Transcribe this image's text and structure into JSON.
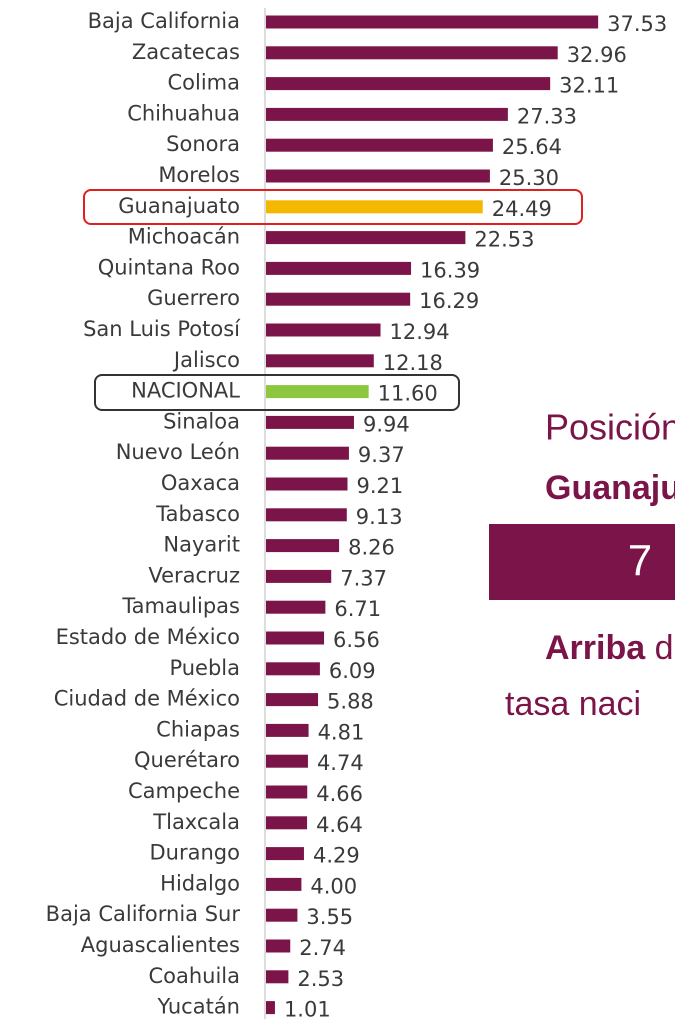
{
  "chart_data": {
    "type": "barh",
    "categories": [
      "Baja California",
      "Zacatecas",
      "Colima",
      "Chihuahua",
      "Sonora",
      "Morelos",
      "Guanajuato",
      "Michoacán",
      "Quintana Roo",
      "Guerrero",
      "San Luis Potosí",
      "Jalisco",
      "NACIONAL",
      "Sinaloa",
      "Nuevo León",
      "Oaxaca",
      "Tabasco",
      "Nayarit",
      "Veracruz",
      "Tamaulipas",
      "Estado de México",
      "Puebla",
      "Ciudad de México",
      "Chiapas",
      "Querétaro",
      "Campeche",
      "Tlaxcala",
      "Durango",
      "Hidalgo",
      "Baja California Sur",
      "Aguascalientes",
      "Coahuila",
      "Yucatán"
    ],
    "values": [
      37.53,
      32.96,
      32.11,
      27.33,
      25.64,
      25.3,
      24.49,
      22.53,
      16.39,
      16.29,
      12.94,
      12.18,
      11.6,
      9.94,
      9.37,
      9.21,
      9.13,
      8.26,
      7.37,
      6.71,
      6.56,
      6.09,
      5.88,
      4.81,
      4.74,
      4.66,
      4.64,
      4.29,
      4.0,
      3.55,
      2.74,
      2.53,
      1.01
    ],
    "value_labels": [
      "37.53",
      "32.96",
      "32.11",
      "27.33",
      "25.64",
      "25.30",
      "24.49",
      "22.53",
      "16.39",
      "16.29",
      "12.94",
      "12.18",
      "11.60",
      "9.94",
      "9.37",
      "9.21",
      "9.13",
      "8.26",
      "7.37",
      "6.71",
      "6.56",
      "6.09",
      "5.88",
      "4.81",
      "4.74",
      "4.66",
      "4.64",
      "4.29",
      "4.00",
      "3.55",
      "2.74",
      "2.53",
      "1.01"
    ],
    "colors": [
      "#7b1448",
      "#7b1448",
      "#7b1448",
      "#7b1448",
      "#7b1448",
      "#7b1448",
      "#f5b800",
      "#7b1448",
      "#7b1448",
      "#7b1448",
      "#7b1448",
      "#7b1448",
      "#8dc63f",
      "#7b1448",
      "#7b1448",
      "#7b1448",
      "#7b1448",
      "#7b1448",
      "#7b1448",
      "#7b1448",
      "#7b1448",
      "#7b1448",
      "#7b1448",
      "#7b1448",
      "#7b1448",
      "#7b1448",
      "#7b1448",
      "#7b1448",
      "#7b1448",
      "#7b1448",
      "#7b1448",
      "#7b1448",
      "#7b1448"
    ],
    "xlim": [
      0,
      40
    ]
  },
  "panel": {
    "line1": "Posición",
    "line2": "Guanaju",
    "rank": "7",
    "line3_bold": "Arriba",
    "line3_rest": "d",
    "line4": "tasa naci"
  }
}
